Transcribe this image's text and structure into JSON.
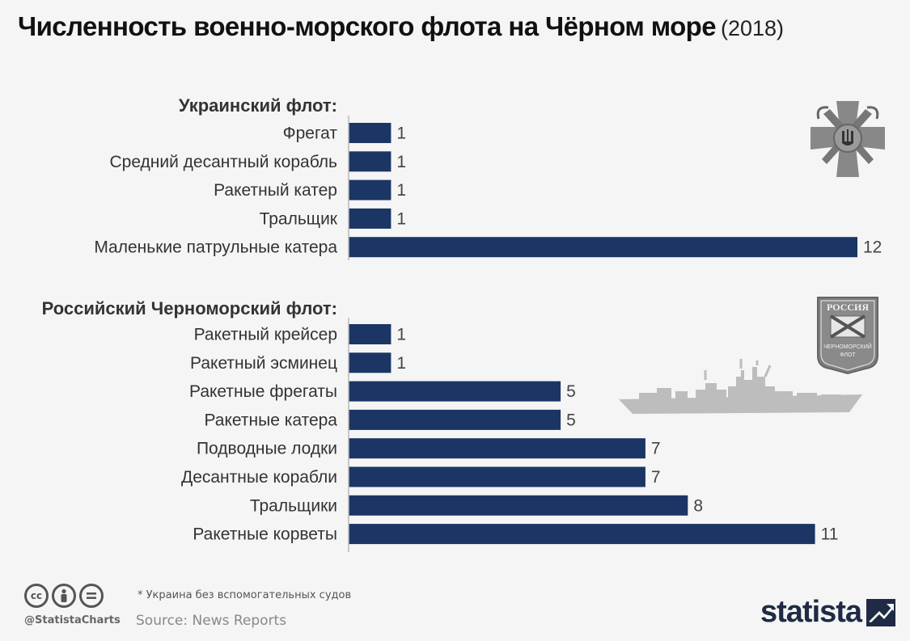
{
  "title": {
    "main": "Численность военно-морского флота на Чёрном море",
    "year": "(2018)"
  },
  "colors": {
    "bar": "#1b3564",
    "axis": "#b8b8b8",
    "emblem": "#888888",
    "ship": "#bdbdbd",
    "brand": "#1f2a44"
  },
  "chart_data": {
    "type": "bar",
    "orientation": "horizontal",
    "xlim": [
      0,
      12
    ],
    "groups": [
      {
        "name": "Украинский флот:",
        "categories": [
          "Фрегат",
          "Средний десантный корабль",
          "Ракетный катер",
          "Тральщик",
          "Маленькие патрульные катера"
        ],
        "values": [
          1,
          1,
          1,
          1,
          12
        ],
        "emblem": "ukraine-navy-emblem-icon"
      },
      {
        "name": "Российский Черноморский флот:",
        "categories": [
          "Ракетный крейсер",
          "Ракетный эсминец",
          "Ракетные фрегаты",
          "Ракетные катера",
          "Подводные лодки",
          "Десантные корабли",
          "Тральщики",
          "Ракетные корветы"
        ],
        "values": [
          1,
          1,
          5,
          5,
          7,
          7,
          8,
          11
        ],
        "emblem": "russia-black-sea-fleet-emblem-icon",
        "emblem_text": {
          "top": "РОССИЯ",
          "bottom1": "ЧЕРНОМОРСКИЙ",
          "bottom2": "ФЛОТ"
        }
      }
    ]
  },
  "footer": {
    "note": "* Украина без вспомогательных судов",
    "handle": "@StatistaCharts",
    "source_prefix": "Source:",
    "source": "News Reports",
    "brand": "statista",
    "license_icons": [
      "cc-icon",
      "attribution-icon",
      "no-derivatives-icon"
    ]
  }
}
